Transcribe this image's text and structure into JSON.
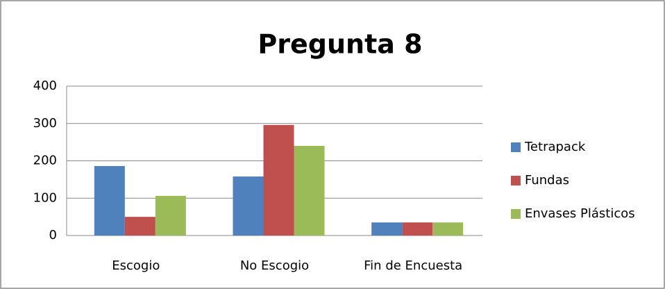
{
  "chart_data": {
    "type": "bar",
    "title": "Pregunta 8",
    "categories": [
      "Escogio",
      "No Escogio",
      "Fin de Encuesta"
    ],
    "series": [
      {
        "name": "Tetrapack",
        "color": "#4f81bd",
        "values": [
          186,
          158,
          35
        ]
      },
      {
        "name": "Fundas",
        "color": "#c0504d",
        "values": [
          50,
          296,
          35
        ]
      },
      {
        "name": "Envases Plásticos",
        "color": "#9bbb59",
        "values": [
          106,
          240,
          35
        ]
      }
    ],
    "ylim": [
      0,
      400
    ],
    "yticks": [
      0,
      100,
      200,
      300,
      400
    ],
    "grid": true,
    "legend": "right"
  }
}
